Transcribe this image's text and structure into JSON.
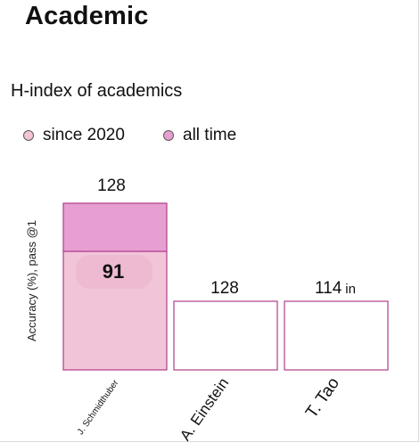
{
  "page": {
    "heading": "Academic"
  },
  "chart_data": {
    "type": "bar",
    "title": "H-index of academics",
    "ylabel": "Accuracy (%), pass @1",
    "xlabel": "",
    "categories": [
      "J. Schmidthuber",
      "A. Einstein",
      "T. Tao"
    ],
    "series": [
      {
        "name": "since 2020",
        "values": [
          91,
          null,
          null
        ],
        "color": "#f1c4d8"
      },
      {
        "name": "all time",
        "values": [
          128,
          128,
          114
        ],
        "color": "#e69fd0"
      }
    ],
    "value_labels": [
      "128",
      "128",
      "114"
    ],
    "inner_labels": [
      "91",
      "",
      ""
    ],
    "label_suffixes": [
      "",
      "",
      "in"
    ],
    "grid": false,
    "legend_position": "top-left",
    "ylim": [
      0,
      128
    ]
  }
}
